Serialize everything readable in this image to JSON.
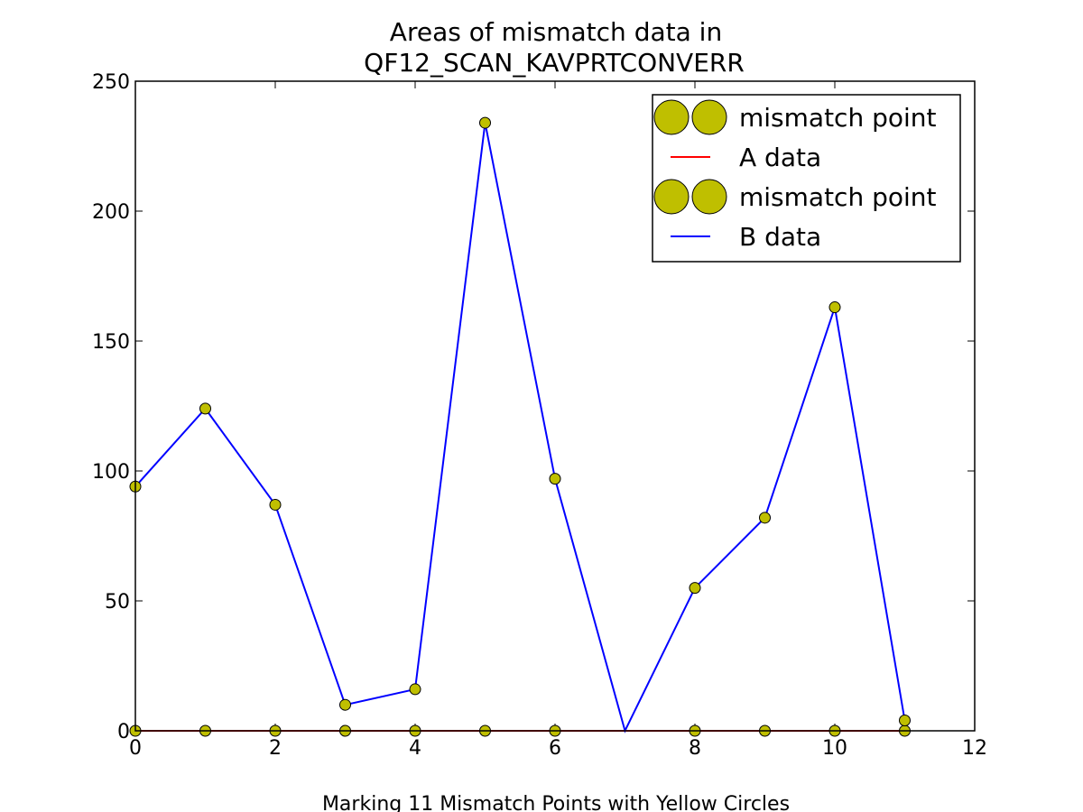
{
  "chart_data": {
    "type": "line",
    "title_line1": "Areas of mismatch data in",
    "title_line2": "QF12_SCAN_KAVPRTCONVERR",
    "xlabel": "Marking 11 Mismatch Points with Yellow Circles",
    "ylabel": "",
    "xlim": [
      0,
      12
    ],
    "ylim": [
      0,
      250
    ],
    "x_ticks": [
      0,
      2,
      4,
      6,
      8,
      10,
      12
    ],
    "y_ticks": [
      0,
      50,
      100,
      150,
      200,
      250
    ],
    "grid": false,
    "legend_position": "top-right",
    "x": [
      0,
      1,
      2,
      3,
      4,
      5,
      6,
      7,
      8,
      9,
      10,
      11
    ],
    "series": [
      {
        "name": "A data",
        "color": "#ff0000",
        "values": [
          0,
          0,
          0,
          0,
          0,
          0,
          0,
          0,
          0,
          0,
          0,
          0
        ],
        "mismatch_x": [
          0,
          1,
          2,
          3,
          4,
          5,
          6,
          8,
          9,
          10,
          11
        ],
        "mismatch_values": [
          0,
          0,
          0,
          0,
          0,
          0,
          0,
          0,
          0,
          0,
          0
        ]
      },
      {
        "name": "B data",
        "color": "#0000ff",
        "values": [
          94,
          124,
          87,
          10,
          16,
          234,
          97,
          0,
          55,
          82,
          163,
          4
        ],
        "mismatch_x": [
          0,
          1,
          2,
          3,
          4,
          5,
          6,
          8,
          9,
          10,
          11
        ],
        "mismatch_values": [
          94,
          124,
          87,
          10,
          16,
          234,
          97,
          55,
          82,
          163,
          4
        ]
      }
    ],
    "mismatch_marker_color": "#bfbf00",
    "legend": [
      {
        "label": "mismatch point",
        "kind": "marker"
      },
      {
        "label": "A data",
        "kind": "line",
        "color": "#ff0000"
      },
      {
        "label": "mismatch point",
        "kind": "marker"
      },
      {
        "label": "B data",
        "kind": "line",
        "color": "#0000ff"
      }
    ]
  }
}
